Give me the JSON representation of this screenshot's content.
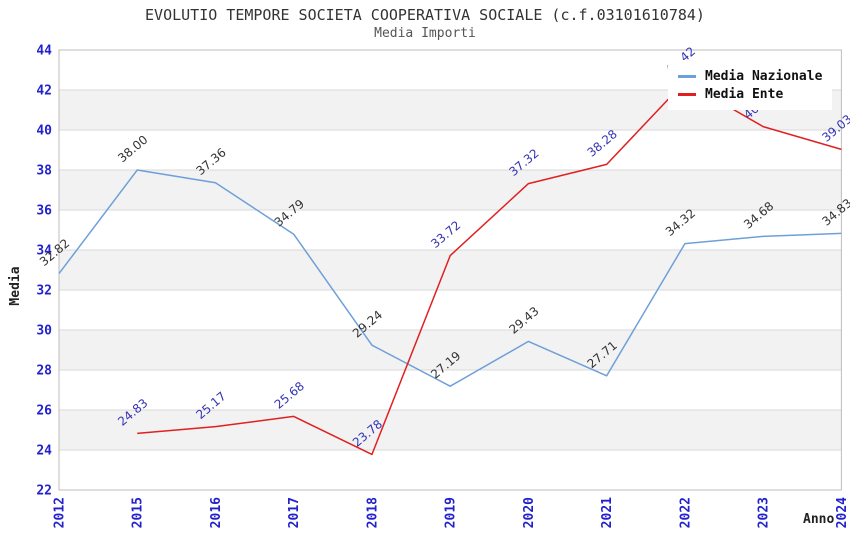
{
  "title": "EVOLUTIO TEMPORE SOCIETA COOPERATIVA SOCIALE (c.f.03101610784)",
  "subtitle": "Media Importi",
  "axes": {
    "y_label": "Media",
    "x_label": "Anno"
  },
  "legend": {
    "position": "top-right",
    "items": [
      {
        "label": "Media Nazionale",
        "color": "#6f9fd9"
      },
      {
        "label": "Media Ente",
        "color": "#e02020"
      }
    ]
  },
  "colors": {
    "tick_label": "#2222cc",
    "band": "#f2f2f2",
    "gridline": "#d9d9d9",
    "plot_border": "#bdbdbd",
    "title_text": "#333333",
    "subtitle_text": "#555555"
  },
  "chart_data": {
    "type": "line",
    "title": "EVOLUTIO TEMPORE SOCIETA COOPERATIVA SOCIALE (c.f.03101610784)",
    "subtitle": "Media Importi",
    "xlabel": "Anno",
    "ylabel": "Media",
    "categories": [
      "2012",
      "2015",
      "2016",
      "2017",
      "2018",
      "2019",
      "2020",
      "2021",
      "2022",
      "2023",
      "2024"
    ],
    "series": [
      {
        "name": "Media Nazionale",
        "color": "#6f9fd9",
        "label_color": "#333333",
        "start_index": 0,
        "values": [
          32.82,
          38.0,
          37.36,
          34.79,
          29.24,
          27.19,
          29.43,
          27.71,
          34.32,
          34.68,
          34.83
        ]
      },
      {
        "name": "Media Ente",
        "color": "#e02020",
        "label_color": "#3434b4",
        "start_index": 1,
        "values": [
          24.83,
          25.17,
          25.68,
          23.78,
          33.72,
          37.32,
          38.28,
          42.42,
          40.17,
          39.03
        ]
      }
    ],
    "ylim": [
      22,
      44
    ],
    "ytick_step": 2,
    "grid": "horizontal-bands-alternating",
    "legend_position": "top-right",
    "legend_overlaps_point_label": "Media Ente 2022"
  }
}
